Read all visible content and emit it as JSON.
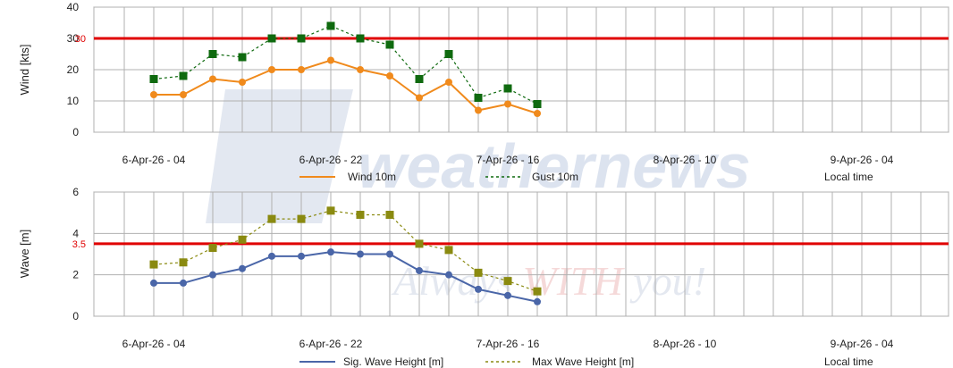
{
  "watermark": {
    "brand": "weathernews",
    "slogan_a": "Always ",
    "slogan_b": "WITH",
    "slogan_c": " you!"
  },
  "legend_note": "Local time",
  "chart_data": [
    {
      "type": "line",
      "ylabel": "Wind [kts]",
      "ylim": [
        0,
        40
      ],
      "yticks": [
        "0",
        "10",
        "20",
        "30",
        "40"
      ],
      "x_tick_labels": [
        "6-Apr-26 - 04",
        "6-Apr-26 - 22",
        "7-Apr-26 - 16",
        "8-Apr-26 - 10",
        "9-Apr-26 - 04"
      ],
      "threshold": {
        "value": 30,
        "label": "30",
        "color": "#e00000"
      },
      "series": [
        {
          "name": "Wind 10m",
          "color": "#f08a1c",
          "style": "solid",
          "marker": "circle",
          "values": [
            12,
            12,
            17,
            16,
            20,
            20,
            23,
            20,
            18,
            11,
            16,
            7,
            9,
            6
          ]
        },
        {
          "name": "Gust 10m",
          "color": "#0f6a0f",
          "style": "dashed",
          "marker": "square",
          "values": [
            17,
            18,
            25,
            24,
            30,
            30,
            34,
            30,
            28,
            17,
            25,
            11,
            14,
            9
          ]
        }
      ]
    },
    {
      "type": "line",
      "ylabel": "Wave [m]",
      "ylim": [
        0,
        6
      ],
      "yticks": [
        "0",
        "2",
        "4",
        "6"
      ],
      "x_tick_labels": [
        "6-Apr-26 - 04",
        "6-Apr-26 - 22",
        "7-Apr-26 - 16",
        "8-Apr-26 - 10",
        "9-Apr-26 - 04"
      ],
      "threshold": {
        "value": 3.5,
        "label": "3.5",
        "color": "#e00000"
      },
      "series": [
        {
          "name": "Sig. Wave Height [m]",
          "color": "#4a66a8",
          "style": "solid",
          "marker": "circle",
          "values": [
            1.6,
            1.6,
            2.0,
            2.3,
            2.9,
            2.9,
            3.1,
            3.0,
            3.0,
            2.2,
            2.0,
            1.3,
            1.0,
            0.7
          ]
        },
        {
          "name": "Max Wave Height [m]",
          "color": "#8a8a10",
          "style": "dashed",
          "marker": "square",
          "values": [
            2.5,
            2.6,
            3.3,
            3.7,
            4.7,
            4.7,
            5.1,
            4.9,
            4.9,
            3.5,
            3.2,
            2.1,
            1.7,
            1.2
          ]
        }
      ]
    }
  ]
}
